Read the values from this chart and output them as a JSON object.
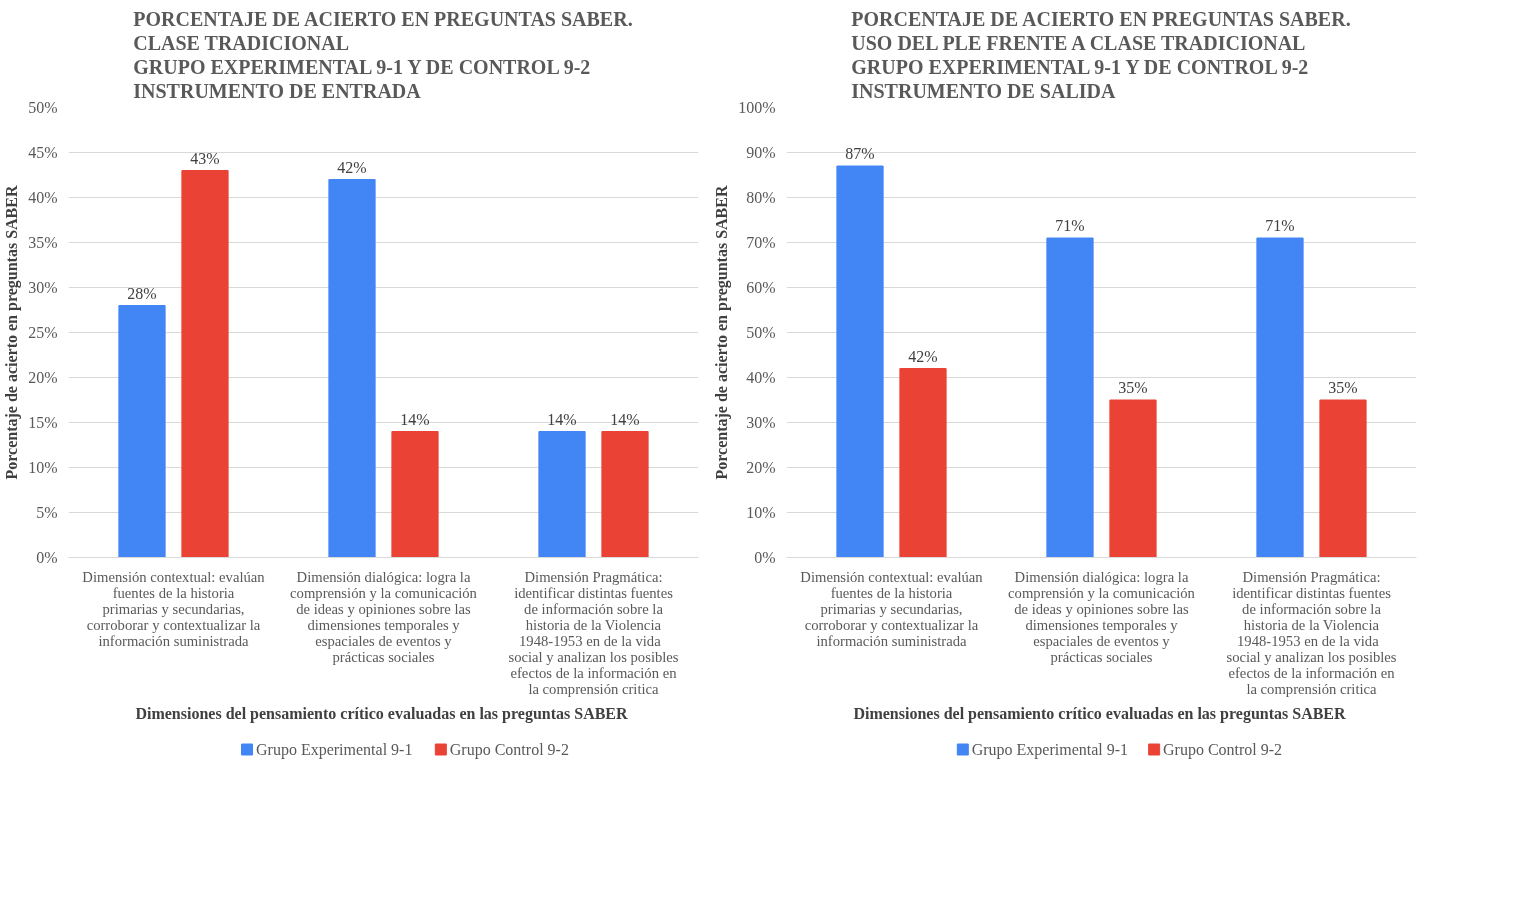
{
  "chart_data": [
    {
      "type": "bar",
      "title": "PORCENTAJE DE ACIERTO EN PREGUNTAS SABER.\nCLASE TRADICIONAL\nGRUPO EXPERIMENTAL 9-1 Y DE CONTROL 9-2\nINSTRUMENTO DE ENTRADA",
      "xlabel": "Dimensiones del pensamiento crítico evaluadas en las preguntas  SABER",
      "ylabel": "Porcentaje de acierto en preguntas SABER",
      "categories": [
        "Dimensión contextual: evalúan fuentes de la historia primarias y secundarias, corroborar y contextualizar la información suministrada",
        "Dimensión dialógica: logra la comprensión y la comunicación de ideas y opiniones sobre las dimensiones temporales y espaciales de eventos y prácticas sociales",
        "Dimensión Pragmática: identificar distintas fuentes de información sobre la historia de la Violencia 1948-1953  en  de la vida social y analizan los posibles efectos de la información en la comprensión critica"
      ],
      "series": [
        {
          "name": "Grupo Experimental 9-1",
          "color": "#4285f4",
          "values": [
            28,
            42,
            14
          ],
          "value_labels": [
            "28%",
            "42%",
            "14%"
          ]
        },
        {
          "name": "Grupo Control 9-2",
          "color": "#ea4335",
          "values": [
            43,
            14,
            14
          ],
          "value_labels": [
            "43%",
            "14%",
            "14%"
          ]
        }
      ],
      "ylim": [
        0,
        50
      ],
      "yticks": [
        {
          "value": 0,
          "label": "0%"
        },
        {
          "value": 5,
          "label": "5%"
        },
        {
          "value": 10,
          "label": "10%"
        },
        {
          "value": 15,
          "label": "15%"
        },
        {
          "value": 20,
          "label": "20%"
        },
        {
          "value": 25,
          "label": "25%"
        },
        {
          "value": 30,
          "label": "30%"
        },
        {
          "value": 35,
          "label": "35%"
        },
        {
          "value": 40,
          "label": "40%"
        },
        {
          "value": 45,
          "label": "45%"
        },
        {
          "value": 50,
          "label": "50%"
        }
      ],
      "grid": "y",
      "legend": "bottom"
    },
    {
      "type": "bar",
      "title": "PORCENTAJE DE ACIERTO EN PREGUNTAS SABER.\nUSO DEL PLE FRENTE A CLASE TRADICIONAL\nGRUPO EXPERIMENTAL 9-1 Y DE CONTROL 9-2\nINSTRUMENTO DE SALIDA",
      "xlabel": "Dimensiones del pensamiento crítico evaluadas en las preguntas  SABER",
      "ylabel": "Porcentaje de acierto en preguntas SABER",
      "categories": [
        "Dimensión contextual: evalúan fuentes de la historia primarias y secundarias, corroborar y contextualizar la información suministrada",
        "Dimensión dialógica: logra la comprensión y la comunicación de ideas y opiniones sobre las dimensiones temporales y espaciales de eventos y prácticas sociales",
        "Dimensión Pragmática: identificar distintas fuentes de información sobre la historia de la Violencia 1948-1953  en  de la vida social y analizan los posibles efectos de la información en la comprensión critica"
      ],
      "series": [
        {
          "name": "Grupo Experimental 9-1",
          "color": "#4285f4",
          "values": [
            87,
            71,
            71
          ],
          "value_labels": [
            "87%",
            "71%",
            "71%"
          ]
        },
        {
          "name": "Grupo Control 9-2",
          "color": "#ea4335",
          "values": [
            42,
            35,
            35
          ],
          "value_labels": [
            "42%",
            "35%",
            "35%"
          ]
        }
      ],
      "ylim": [
        0,
        100
      ],
      "yticks": [
        {
          "value": 0,
          "label": "0%"
        },
        {
          "value": 10,
          "label": "10%"
        },
        {
          "value": 20,
          "label": "20%"
        },
        {
          "value": 30,
          "label": "30%"
        },
        {
          "value": 40,
          "label": "40%"
        },
        {
          "value": 50,
          "label": "50%"
        },
        {
          "value": 60,
          "label": "60%"
        },
        {
          "value": 70,
          "label": "70%"
        },
        {
          "value": 80,
          "label": "80%"
        },
        {
          "value": 90,
          "label": "90%"
        },
        {
          "value": 100,
          "label": "100%"
        }
      ],
      "grid": "y",
      "legend": "bottom"
    }
  ]
}
